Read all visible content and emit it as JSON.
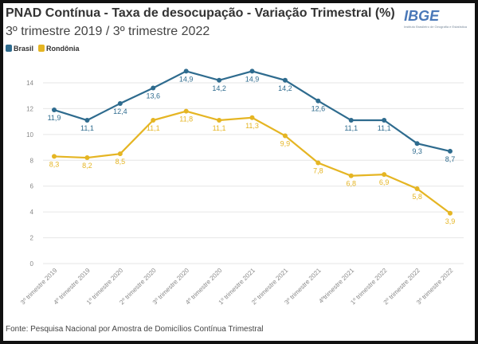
{
  "chart_data": {
    "type": "line",
    "title": "PNAD Contínua - Taxa de desocupação - Variação Trimestral (%)",
    "subtitle": "3º trimestre 2019 / 3º trimestre 2022",
    "categories": [
      "3º trimestre 2019",
      "4º trimestre 2019",
      "1º trimestre 2020",
      "2º trimestre 2020",
      "3º trimestre 2020",
      "4º trimestre 2020",
      "1º trimestre 2021",
      "2º trimestre 2021",
      "3º trimestre 2021",
      "4ºtrimestre 2021",
      "1º trimestre 2022",
      "2º trimestre 2022",
      "3º trimestre 2022"
    ],
    "series": [
      {
        "name": "Brasil",
        "color": "#2e6b8e",
        "values": [
          11.9,
          11.1,
          12.4,
          13.6,
          14.9,
          14.2,
          14.9,
          14.2,
          12.6,
          11.1,
          11.1,
          9.3,
          8.7
        ]
      },
      {
        "name": "Rondônia",
        "color": "#e5b523",
        "values": [
          8.3,
          8.2,
          8.5,
          11.1,
          11.8,
          11.1,
          11.3,
          9.9,
          7.8,
          6.8,
          6.9,
          5.8,
          3.9
        ]
      }
    ],
    "yticks": [
      0,
      2,
      4,
      6,
      8,
      10,
      12,
      14
    ],
    "ylim": [
      0,
      14
    ],
    "grid": "horizontal",
    "legend": "top-left",
    "source": "Fonte: Pesquisa Nacional por Amostra de Domicílios Contínua Trimestral"
  },
  "logo": {
    "text": "IBGE",
    "tagline": "Instituto Brasileiro de Geografia e Estatística"
  }
}
